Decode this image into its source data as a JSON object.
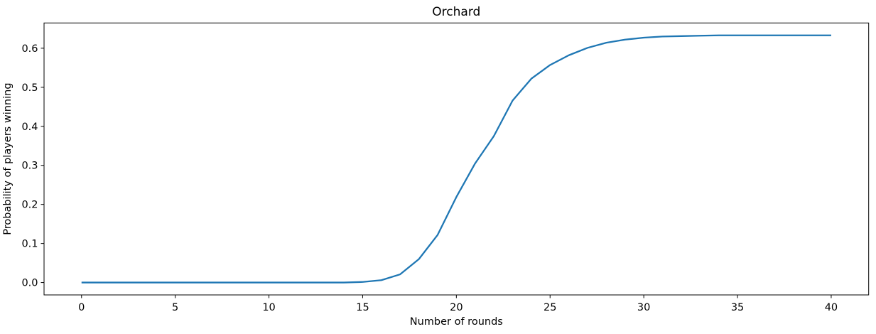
{
  "chart": {
    "title": "Orchard",
    "xlabel": "Number of rounds",
    "ylabel": "Probability of players winning"
  },
  "chart_data": {
    "type": "line",
    "title": "Orchard",
    "xlabel": "Number of rounds",
    "ylabel": "Probability of players winning",
    "x": [
      0,
      1,
      2,
      3,
      4,
      5,
      6,
      7,
      8,
      9,
      10,
      11,
      12,
      13,
      14,
      15,
      16,
      17,
      18,
      19,
      20,
      21,
      22,
      23,
      24,
      25,
      26,
      27,
      28,
      29,
      30,
      31,
      32,
      33,
      34,
      35,
      36,
      37,
      38,
      39,
      40
    ],
    "y": [
      0,
      0,
      0,
      0,
      0,
      0,
      0,
      0,
      0,
      0,
      0,
      0,
      0,
      0,
      0,
      0.0015,
      0.006,
      0.021,
      0.06,
      0.122,
      0.219,
      0.305,
      0.375,
      0.466,
      0.522,
      0.557,
      0.582,
      0.601,
      0.614,
      0.622,
      0.627,
      0.63,
      0.631,
      0.632,
      0.633,
      0.633,
      0.633,
      0.633,
      0.633,
      0.633,
      0.633
    ],
    "x_ticks": [
      0,
      5,
      10,
      15,
      20,
      25,
      30,
      35,
      40
    ],
    "y_ticks": [
      0.0,
      0.1,
      0.2,
      0.3,
      0.4,
      0.5,
      0.6
    ],
    "xlim": [
      -2,
      42
    ],
    "ylim": [
      -0.0317,
      0.6647
    ],
    "grid": false,
    "legend_position": "none",
    "line_color": "#1f77b4",
    "line_width": 2.3,
    "spine_color": "#000000",
    "text_color": "#000000",
    "background_color": "#ffffff"
  }
}
